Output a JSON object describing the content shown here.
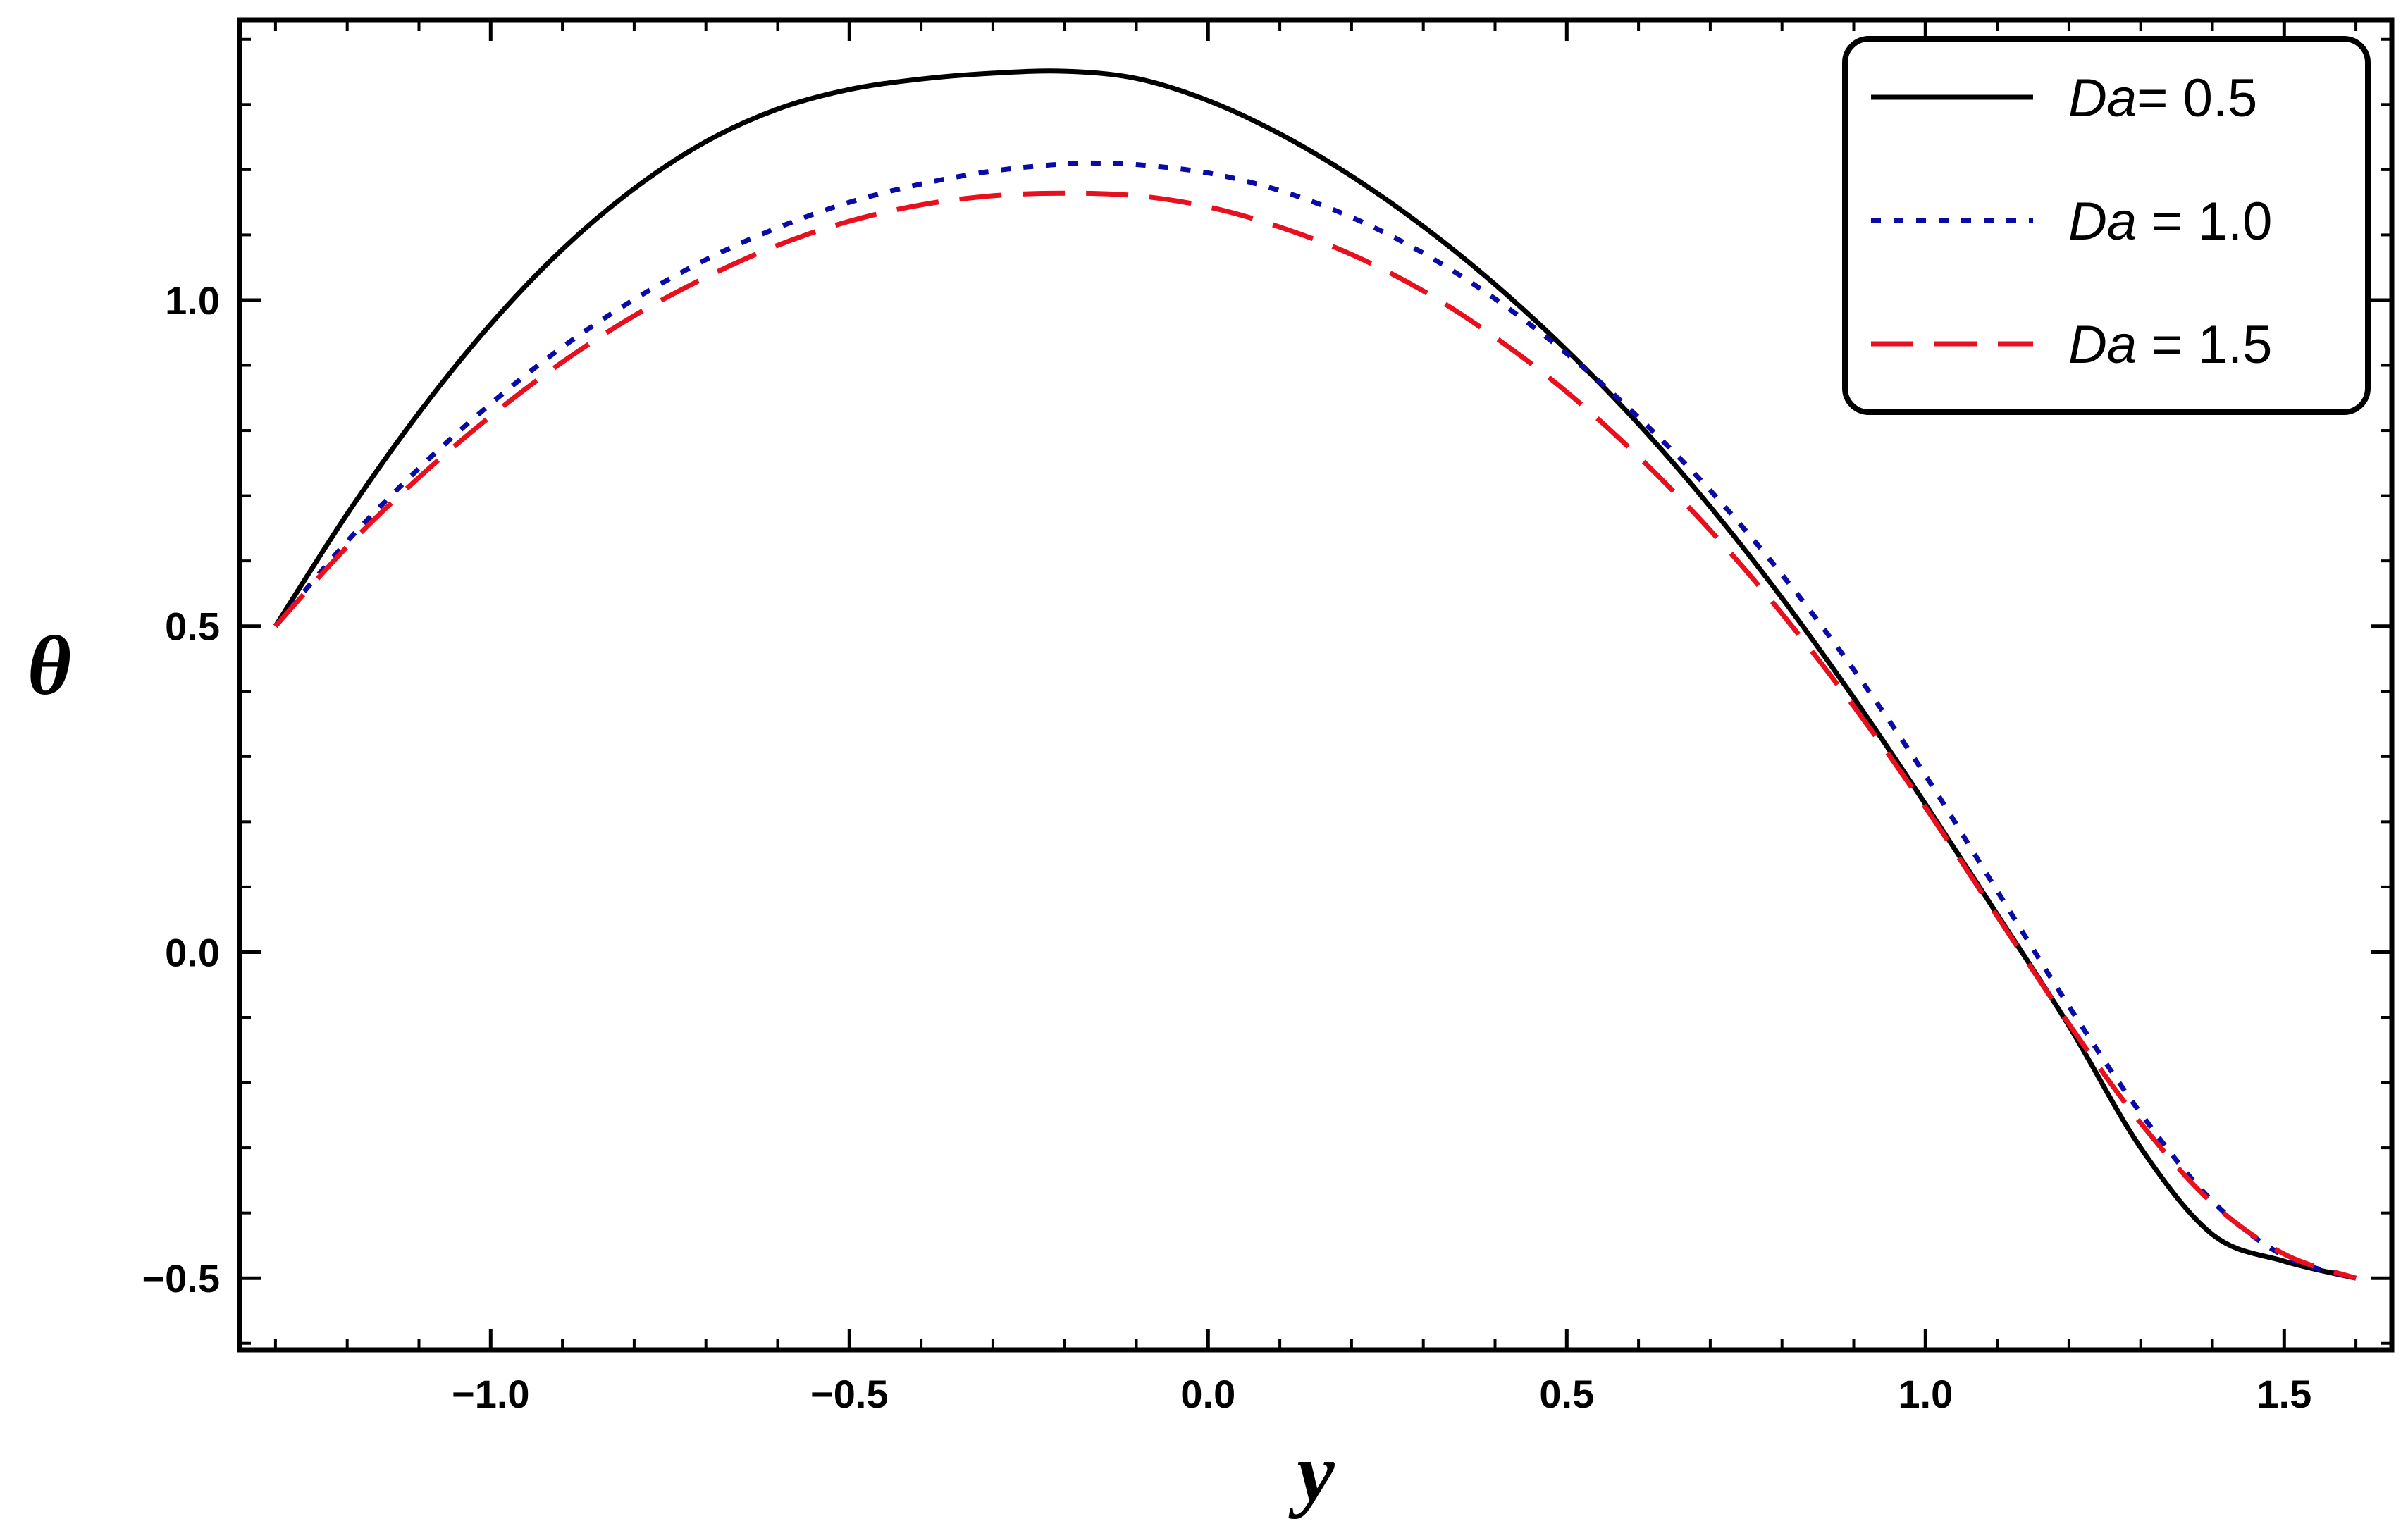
{
  "chart_data": {
    "type": "line",
    "title": "",
    "xlabel": "y",
    "ylabel": "θ",
    "xlim": [
      -1.35,
      1.65
    ],
    "ylim": [
      -0.61,
      1.43
    ],
    "xticks": [
      -1.0,
      -0.5,
      0.0,
      0.5,
      1.0,
      1.5
    ],
    "yticks": [
      -0.5,
      0.0,
      0.5,
      1.0
    ],
    "xtick_labels": [
      "−1.0",
      "−0.5",
      "0.0",
      "0.5",
      "1.0",
      "1.5"
    ],
    "ytick_labels": [
      "−0.5",
      "0.0",
      "0.5",
      "1.0"
    ],
    "grid": false,
    "legend_position": "top-right",
    "series": [
      {
        "name": "Da= 0.5",
        "label_italic": "Da",
        "label_rest": "= 0.5",
        "color": "#000000",
        "dash": "solid",
        "x": [
          -1.3,
          -1.2,
          -1.1,
          -1.0,
          -0.9,
          -0.8,
          -0.7,
          -0.6,
          -0.5,
          -0.4,
          -0.3,
          -0.2,
          -0.1,
          0.0,
          0.1,
          0.2,
          0.3,
          0.4,
          0.5,
          0.6,
          0.7,
          0.8,
          0.9,
          1.0,
          1.1,
          1.2,
          1.3,
          1.4,
          1.5,
          1.6
        ],
        "y": [
          0.5,
          0.672,
          0.827,
          0.963,
          1.078,
          1.171,
          1.243,
          1.293,
          1.323,
          1.339,
          1.348,
          1.351,
          1.34,
          1.306,
          1.255,
          1.19,
          1.113,
          1.024,
          0.923,
          0.81,
          0.683,
          0.543,
          0.39,
          0.227,
          0.058,
          -0.113,
          -0.3,
          -0.433,
          -0.474,
          -0.5
        ]
      },
      {
        "name": "Da = 1.0",
        "label_italic": "Da",
        "label_rest": " = 1.0",
        "color": "#0a0aa6",
        "dash": "short",
        "x": [
          -1.3,
          -1.2,
          -1.1,
          -1.0,
          -0.9,
          -0.8,
          -0.7,
          -0.6,
          -0.5,
          -0.4,
          -0.3,
          -0.2,
          -0.15,
          -0.1,
          0.0,
          0.1,
          0.2,
          0.3,
          0.4,
          0.5,
          0.6,
          0.7,
          0.8,
          0.9,
          1.0,
          1.1,
          1.2,
          1.3,
          1.4,
          1.5,
          1.6
        ],
        "y": [
          0.5,
          0.63,
          0.742,
          0.841,
          0.928,
          1.001,
          1.062,
          1.111,
          1.15,
          1.178,
          1.198,
          1.209,
          1.21,
          1.208,
          1.195,
          1.168,
          1.127,
          1.072,
          1.002,
          0.918,
          0.82,
          0.708,
          0.579,
          0.433,
          0.271,
          0.094,
          -0.083,
          -0.247,
          -0.382,
          -0.466,
          -0.5
        ]
      },
      {
        "name": "Da = 1.5",
        "label_italic": "Da",
        "label_rest": " = 1.5",
        "color": "#e8101e",
        "dash": "long",
        "x": [
          -1.3,
          -1.2,
          -1.1,
          -1.0,
          -0.9,
          -0.8,
          -0.7,
          -0.6,
          -0.5,
          -0.4,
          -0.3,
          -0.2,
          -0.1,
          0.0,
          0.1,
          0.2,
          0.3,
          0.4,
          0.5,
          0.6,
          0.7,
          0.8,
          0.9,
          1.0,
          1.1,
          1.2,
          1.3,
          1.4,
          1.5,
          1.6
        ],
        "y": [
          0.5,
          0.622,
          0.728,
          0.822,
          0.905,
          0.976,
          1.035,
          1.084,
          1.121,
          1.146,
          1.16,
          1.164,
          1.16,
          1.143,
          1.112,
          1.07,
          1.014,
          0.943,
          0.859,
          0.76,
          0.647,
          0.519,
          0.377,
          0.222,
          0.055,
          -0.11,
          -0.262,
          -0.385,
          -0.463,
          -0.5
        ]
      }
    ]
  }
}
